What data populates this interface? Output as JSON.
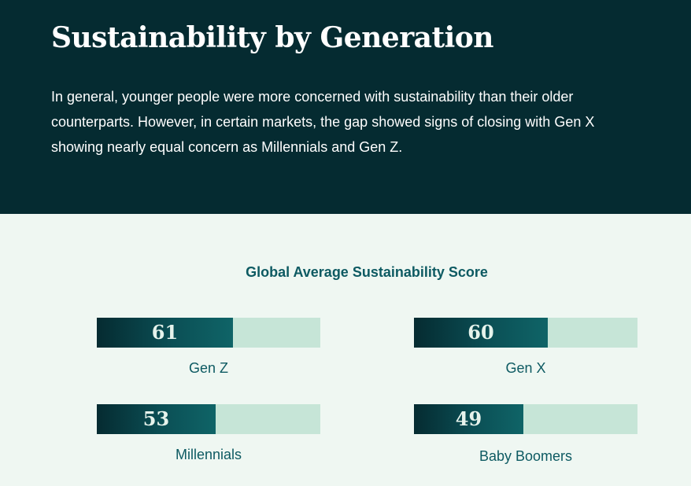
{
  "hero": {
    "title": "Sustainability by Generation",
    "body": "In general, younger people were more concerned with sustainability than their older counterparts. However, in certain markets, the gap showed signs of closing with Gen X showing nearly equal concern as Millennials and Gen Z."
  },
  "colors": {
    "hero_bg": "#052b31",
    "panel_bg": "#eff7f2",
    "bar_fill": "#0b4f55",
    "bar_track": "#c6e5d7",
    "label_text": "#0d5a62"
  },
  "chart_data": {
    "type": "bar",
    "title": "Global Average Sustainability Score",
    "ylim": [
      0,
      100
    ],
    "categories": [
      "Gen Z",
      "Gen X",
      "Millennials",
      "Baby Boomers"
    ],
    "values": [
      61,
      60,
      53,
      49
    ],
    "bars": [
      {
        "label": "Gen Z",
        "value": 61
      },
      {
        "label": "Gen X",
        "value": 60
      },
      {
        "label": "Millennials",
        "value": 53
      },
      {
        "label": "Baby Boomers",
        "value": 49
      }
    ]
  }
}
